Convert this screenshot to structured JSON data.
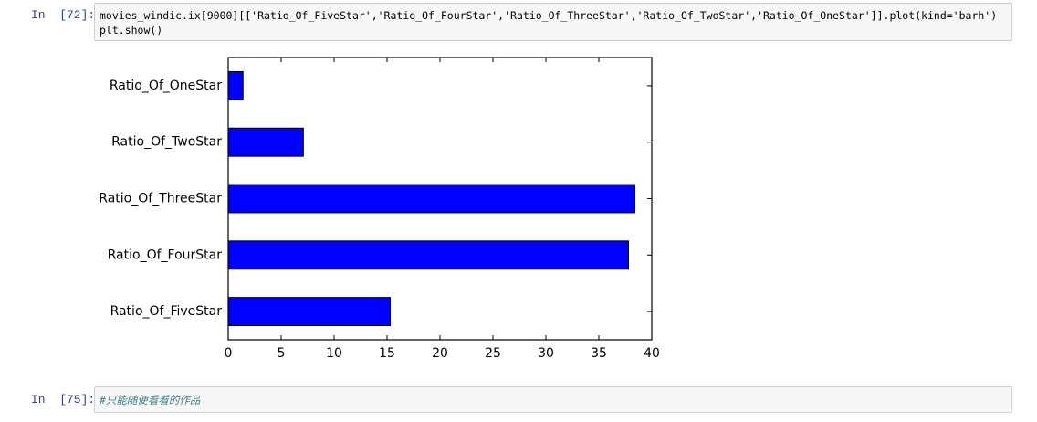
{
  "cells": [
    {
      "prompt": "In  [72]:",
      "code": [
        "movies_windic.ix[9000][['Ratio_Of_FiveStar','Ratio_Of_FourStar','Ratio_Of_ThreeStar','Ratio_Of_TwoStar','Ratio_Of_OneStar']].plot(kind='barh')",
        "plt.show()"
      ]
    },
    {
      "prompt": "In  [75]:",
      "code": [
        "#只能随便看看的作品"
      ]
    }
  ],
  "chart_data": {
    "type": "barh",
    "categories": [
      "Ratio_Of_FiveStar",
      "Ratio_Of_FourStar",
      "Ratio_Of_ThreeStar",
      "Ratio_Of_TwoStar",
      "Ratio_Of_OneStar"
    ],
    "values": [
      15.3,
      37.8,
      38.4,
      7.1,
      1.4
    ],
    "color": "#0000ff",
    "xlim": [
      0,
      40
    ],
    "xticks": [
      0,
      5,
      10,
      15,
      20,
      25,
      30,
      35,
      40
    ]
  }
}
